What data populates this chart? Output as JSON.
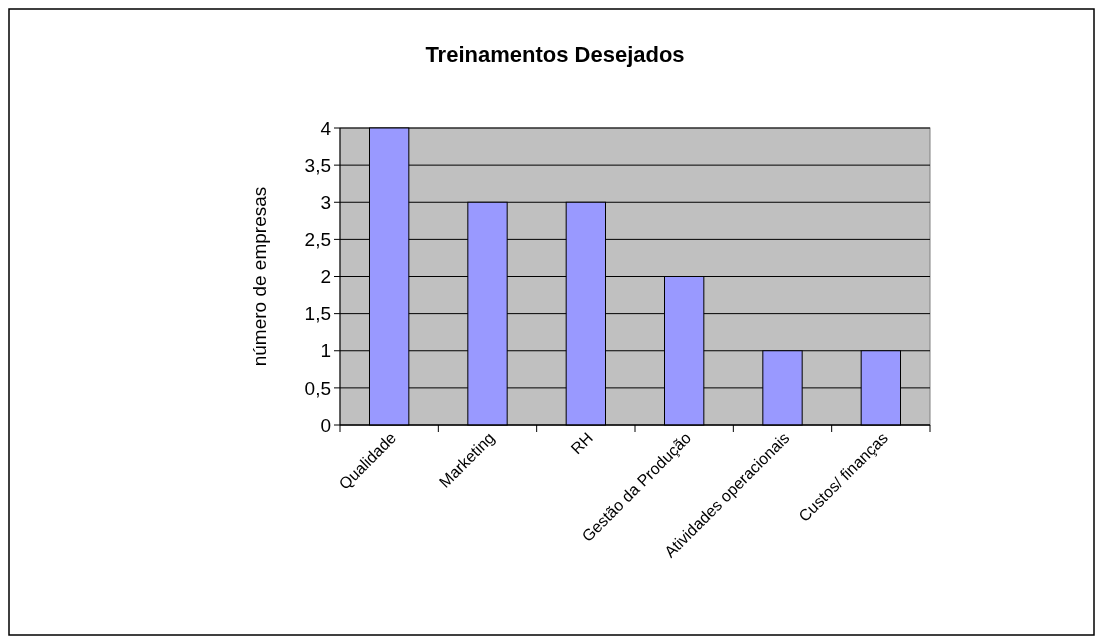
{
  "chart_data": {
    "type": "bar",
    "title": "Treinamentos Desejados",
    "ylabel": "número de empresas",
    "categories": [
      "Qualidade",
      "Marketing",
      "RH",
      "Gestão da Produção",
      "Atividades operacionais",
      "Custos/ finanças"
    ],
    "values": [
      4,
      3,
      3,
      2,
      1,
      1
    ],
    "color": "#9999ff",
    "ylim": [
      0,
      4
    ],
    "yticks": [
      0,
      {
        "value": 0.5,
        "label": "0,5"
      },
      1,
      {
        "value": 1.5,
        "label": "1,5"
      },
      2,
      {
        "value": 2.5,
        "label": "2,5"
      },
      3,
      {
        "value": 3.5,
        "label": "3,5"
      },
      4
    ],
    "grid": "y"
  }
}
